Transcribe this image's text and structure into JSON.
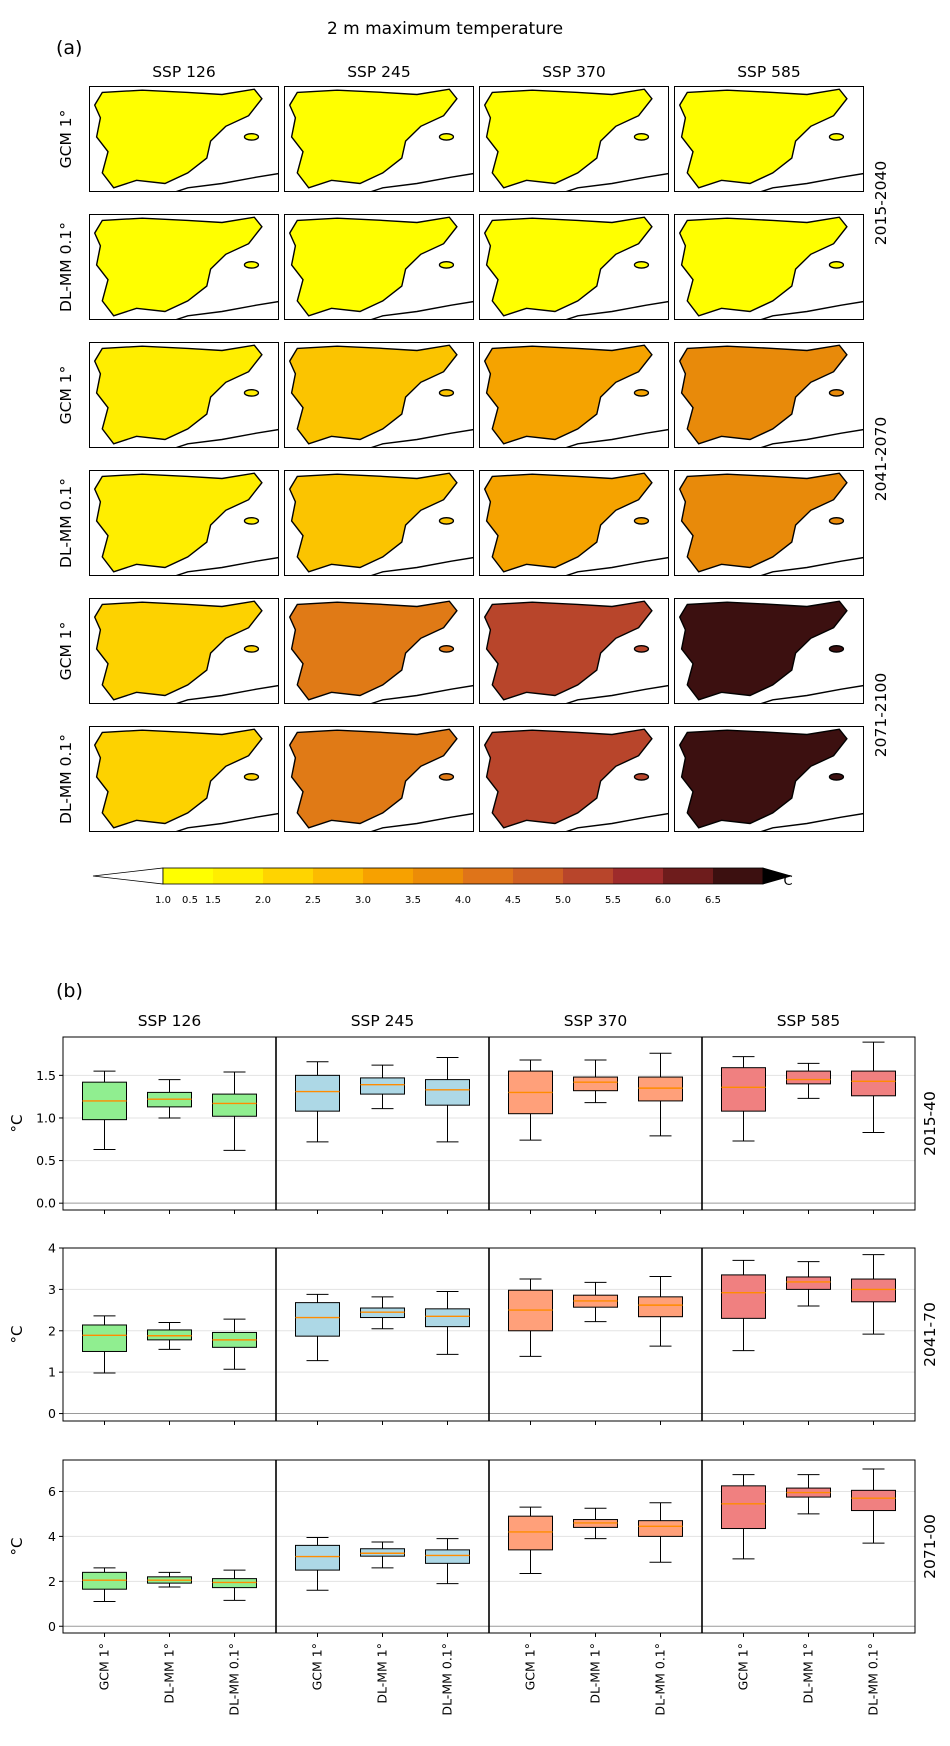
{
  "title": "2 m maximum temperature",
  "panel_a": {
    "label": "(a)",
    "columns": [
      "SSP 126",
      "SSP 245",
      "SSP 370",
      "SSP 585"
    ],
    "row_labels": [
      "GCM 1°",
      "DL-MM 0.1°",
      "GCM 1°",
      "DL-MM 0.1°",
      "GCM 1°",
      "DL-MM 0.1°"
    ],
    "period_labels": [
      "2015-2040",
      "2041-2070",
      "2071-2100"
    ],
    "colorbar": {
      "ticks": [
        "0.5",
        "1.0",
        "1.5",
        "2.0",
        "2.5",
        "3.0",
        "3.5",
        "4.0",
        "4.5",
        "5.0",
        "5.5",
        "6.0",
        "6.5"
      ],
      "unit": "°C",
      "colors": [
        "#ffffff",
        "#ffff00",
        "#ffee00",
        "#ffd400",
        "#fcbb00",
        "#f7a100",
        "#ec8c07",
        "#df7419",
        "#cf5f23",
        "#b8452b",
        "#9e2b2b",
        "#6e1c1c",
        "#3c1010",
        "#000000"
      ]
    },
    "map_colors": {
      "ssp126": [
        "#ffff00",
        "#ffee00",
        "#fdd200"
      ],
      "ssp245": [
        "#ffff00",
        "#fbc400",
        "#e07a16"
      ],
      "ssp370": [
        "#ffff00",
        "#f5a300",
        "#b8452b"
      ],
      "ssp585": [
        "#ffff00",
        "#e88a0a",
        "#3c1010"
      ]
    }
  },
  "panel_b": {
    "label": "(b)",
    "x_tick_labels": [
      "GCM 1°",
      "DL-MM 1°",
      "DL-MM 0.1°"
    ],
    "ylabel": "°C"
  },
  "chart_data": {
    "type": "box",
    "columns": [
      "SSP 126",
      "SSP 245",
      "SSP 370",
      "SSP 585"
    ],
    "categories": [
      "GCM 1°",
      "DL-MM 1°",
      "DL-MM 0.1°"
    ],
    "colors": {
      "SSP 126": "#90ee90",
      "SSP 245": "#add8e6",
      "SSP 370": "#ffa07a",
      "SSP 585": "#f08080"
    },
    "median_color": "#ff8c00",
    "rows": [
      {
        "period": "2015-40",
        "ylim": [
          -0.08,
          1.95
        ],
        "yticks": [
          0.0,
          0.5,
          1.0,
          1.5
        ],
        "ytick_labels": [
          "0.0",
          "0.5",
          "1.0",
          "1.5"
        ],
        "boxes": [
          [
            [
              0.63,
              0.98,
              1.2,
              1.42,
              1.55
            ],
            [
              1.0,
              1.13,
              1.22,
              1.3,
              1.45
            ],
            [
              0.62,
              1.02,
              1.17,
              1.28,
              1.54
            ]
          ],
          [
            [
              0.72,
              1.08,
              1.31,
              1.5,
              1.66
            ],
            [
              1.11,
              1.28,
              1.39,
              1.47,
              1.62
            ],
            [
              0.72,
              1.15,
              1.33,
              1.45,
              1.71
            ]
          ],
          [
            [
              0.74,
              1.05,
              1.3,
              1.55,
              1.68
            ],
            [
              1.18,
              1.32,
              1.42,
              1.48,
              1.68
            ],
            [
              0.79,
              1.2,
              1.35,
              1.48,
              1.76
            ]
          ],
          [
            [
              0.73,
              1.08,
              1.36,
              1.59,
              1.72
            ],
            [
              1.23,
              1.4,
              1.45,
              1.55,
              1.64
            ],
            [
              0.83,
              1.26,
              1.43,
              1.55,
              1.89
            ]
          ]
        ]
      },
      {
        "period": "2041-70",
        "ylim": [
          -0.18,
          4.0
        ],
        "yticks": [
          0,
          1,
          2,
          3,
          4
        ],
        "ytick_labels": [
          "0",
          "1",
          "2",
          "3",
          "4"
        ],
        "boxes": [
          [
            [
              0.98,
              1.5,
              1.89,
              2.14,
              2.36
            ],
            [
              1.55,
              1.78,
              1.88,
              2.02,
              2.2
            ],
            [
              1.07,
              1.6,
              1.78,
              1.96,
              2.28
            ]
          ],
          [
            [
              1.28,
              1.87,
              2.32,
              2.68,
              2.88
            ],
            [
              2.05,
              2.32,
              2.45,
              2.55,
              2.82
            ],
            [
              1.43,
              2.1,
              2.35,
              2.53,
              2.95
            ]
          ],
          [
            [
              1.38,
              2.0,
              2.5,
              2.98,
              3.25
            ],
            [
              2.22,
              2.57,
              2.72,
              2.86,
              3.17
            ],
            [
              1.63,
              2.34,
              2.62,
              2.82,
              3.31
            ]
          ],
          [
            [
              1.52,
              2.3,
              2.92,
              3.35,
              3.7
            ],
            [
              2.6,
              3.0,
              3.18,
              3.3,
              3.67
            ],
            [
              1.92,
              2.7,
              3.0,
              3.25,
              3.84
            ]
          ]
        ]
      },
      {
        "period": "2071-00",
        "ylim": [
          -0.3,
          7.4
        ],
        "yticks": [
          0,
          2,
          4,
          6
        ],
        "ytick_labels": [
          "0",
          "2",
          "4",
          "6"
        ],
        "boxes": [
          [
            [
              1.1,
              1.65,
              2.05,
              2.4,
              2.6
            ],
            [
              1.75,
              1.92,
              2.05,
              2.2,
              2.4
            ],
            [
              1.15,
              1.72,
              1.95,
              2.12,
              2.5
            ]
          ],
          [
            [
              1.6,
              2.5,
              3.1,
              3.6,
              3.95
            ],
            [
              2.6,
              3.12,
              3.25,
              3.45,
              3.75
            ],
            [
              1.9,
              2.8,
              3.15,
              3.4,
              3.9
            ]
          ],
          [
            [
              2.35,
              3.4,
              4.2,
              4.9,
              5.3
            ],
            [
              3.9,
              4.4,
              4.6,
              4.75,
              5.25
            ],
            [
              2.85,
              4.0,
              4.45,
              4.7,
              5.5
            ]
          ],
          [
            [
              3.0,
              4.35,
              5.45,
              6.25,
              6.75
            ],
            [
              5.0,
              5.75,
              5.95,
              6.15,
              6.75
            ],
            [
              3.7,
              5.15,
              5.7,
              6.05,
              7.0
            ]
          ]
        ]
      }
    ]
  }
}
